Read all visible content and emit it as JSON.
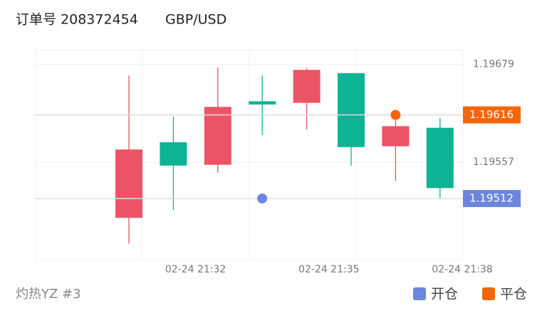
{
  "header": {
    "order": "订单号 208372454",
    "symbol": "GBP/USD"
  },
  "chart_data": {
    "type": "candlestick",
    "categories": [
      null,
      null,
      null,
      null,
      null,
      null,
      null,
      null
    ],
    "open": [
      1.19573,
      1.19553,
      1.19626,
      1.19629,
      1.19672,
      1.19576,
      1.19602,
      1.19525
    ],
    "high": [
      1.19665,
      1.19614,
      1.19675,
      1.19665,
      1.19674,
      1.19668,
      1.19612,
      1.19612
    ],
    "low": [
      1.19456,
      1.19498,
      1.19544,
      1.19591,
      1.19598,
      1.19553,
      1.19534,
      1.19512
    ],
    "close": [
      1.19488,
      1.19582,
      1.19554,
      1.19633,
      1.19631,
      1.19668,
      1.19577,
      1.196
    ],
    "up_color": "#0cb394",
    "down_color": "#ec5466",
    "ylim": [
      1.19436,
      1.19697
    ],
    "yticks": [
      1.19679,
      1.19557
    ],
    "xticks": [
      {
        "value": 1.5,
        "label": "02-24 21:32"
      },
      {
        "value": 4.5,
        "label": "02-24 21:35"
      },
      {
        "value": 7.5,
        "label": "02-24 21:38"
      }
    ],
    "markers": [
      {
        "name": "开仓",
        "color": "#6b86dc",
        "category_index": 3,
        "value": 1.19512
      },
      {
        "name": "平仓",
        "color": "#f5660a",
        "category_index": 6,
        "value": 1.19616
      }
    ],
    "footer": "灼热YZ #3"
  }
}
